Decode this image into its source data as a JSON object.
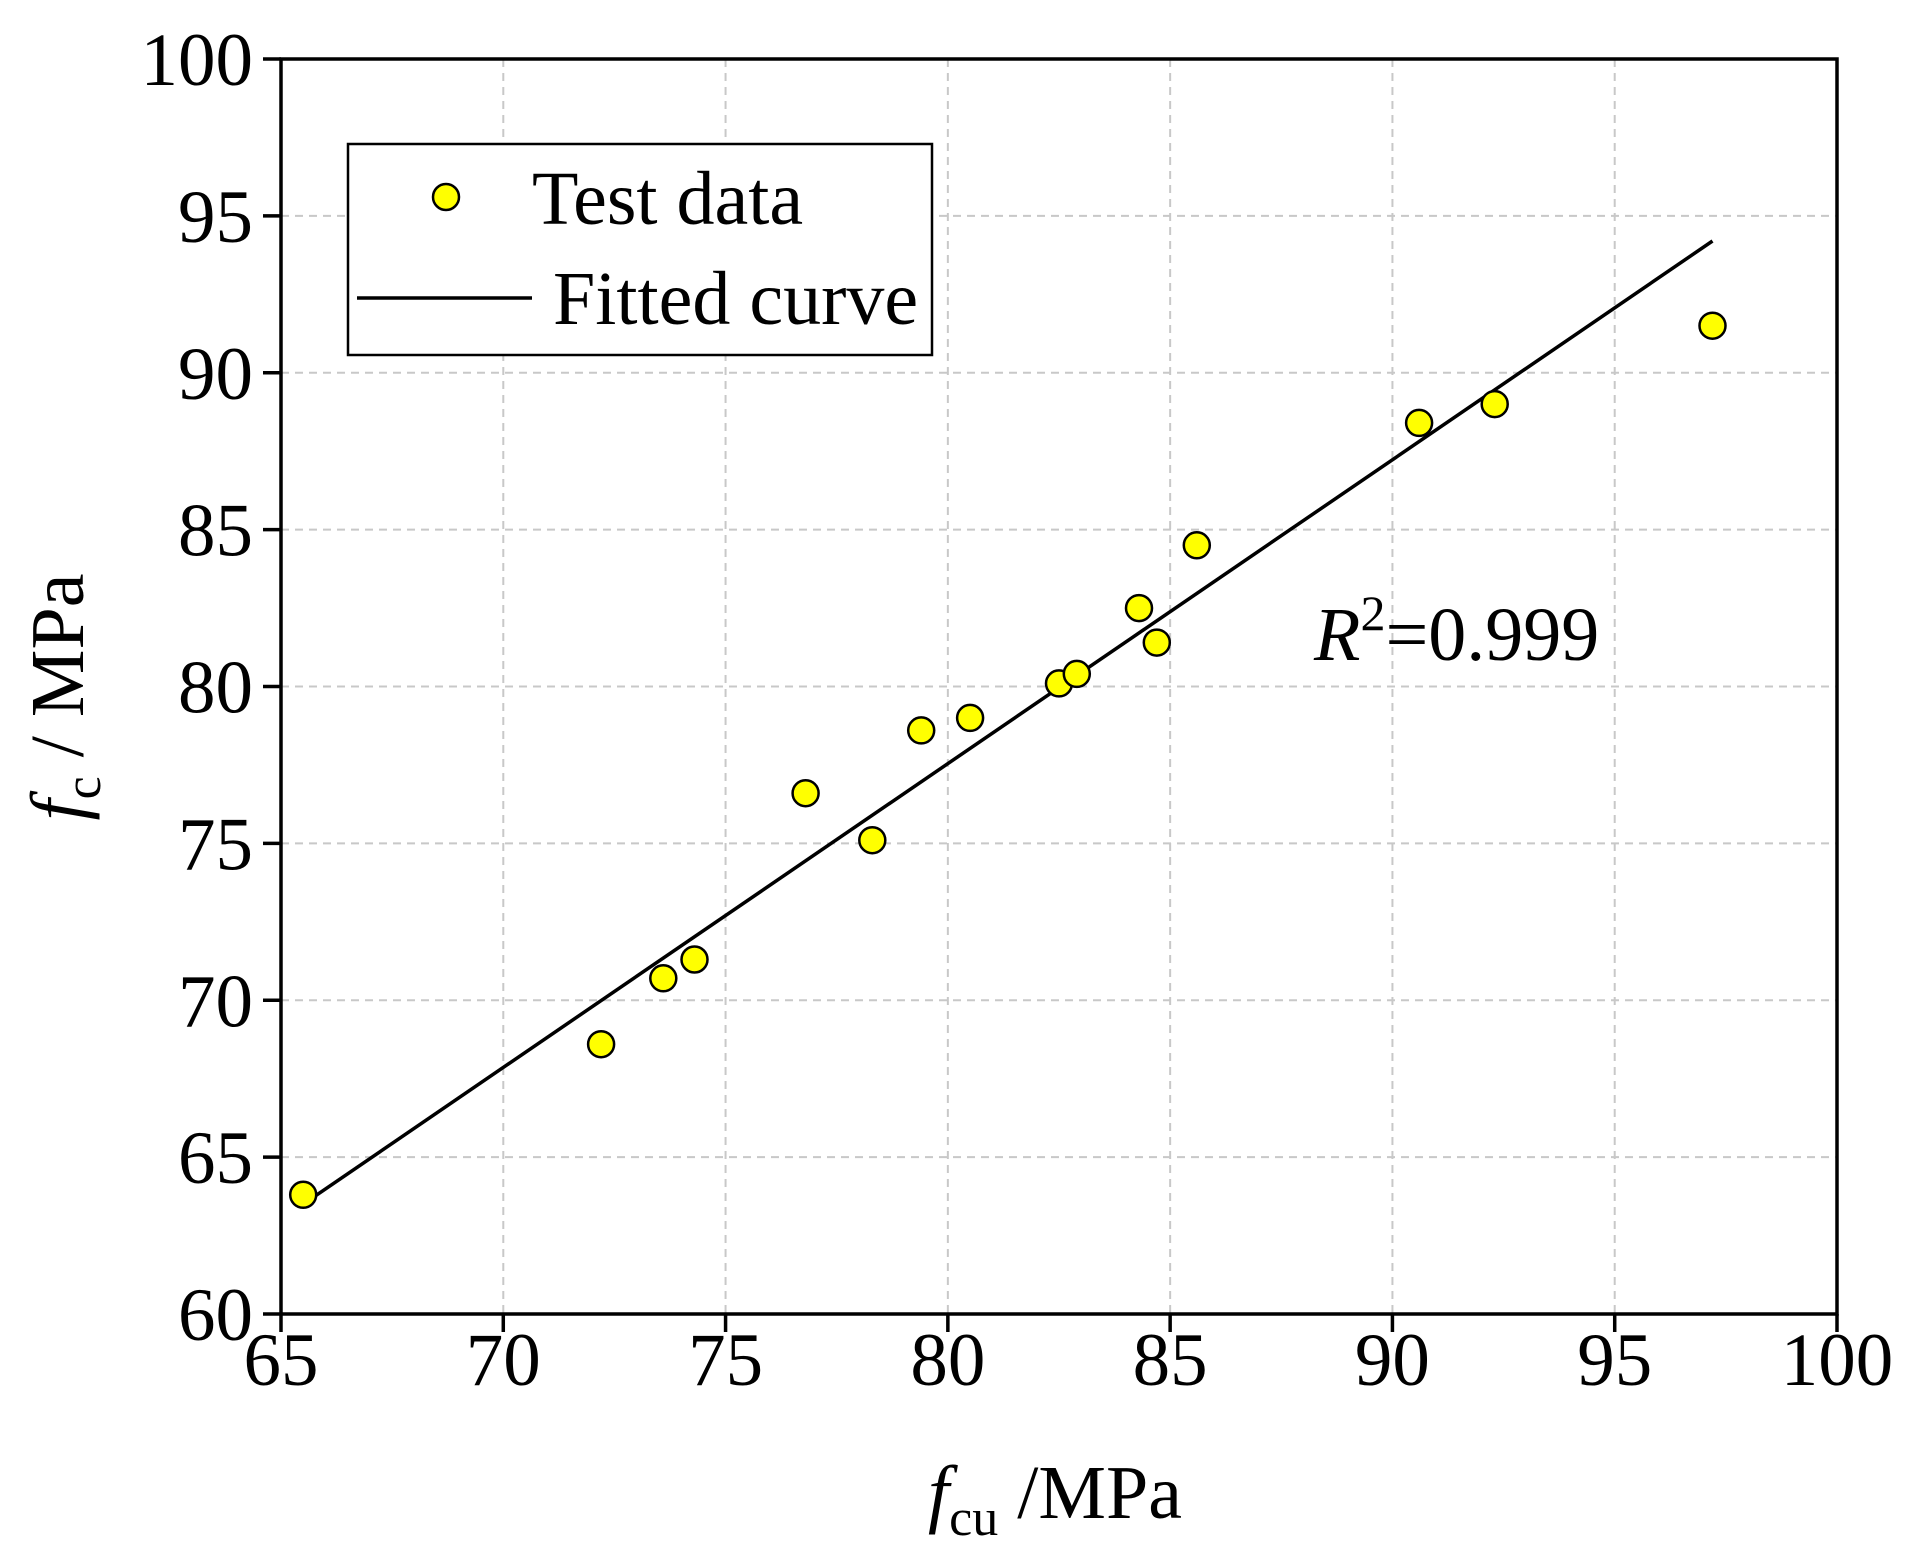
{
  "chart_data": {
    "type": "scatter",
    "xlabel": {
      "symbol": "f",
      "subscript": "cu",
      "unit": " /MPa"
    },
    "ylabel": {
      "symbol": "f",
      "subscript": "c",
      "unit": " / MPa"
    },
    "xlim": [
      65,
      100
    ],
    "ylim": [
      60,
      100
    ],
    "x_ticks": [
      65,
      70,
      75,
      80,
      85,
      90,
      95,
      100
    ],
    "y_ticks": [
      60,
      65,
      70,
      75,
      80,
      85,
      90,
      95,
      100
    ],
    "grid": true,
    "legend_position": "top-left",
    "series": [
      {
        "name": "Test data",
        "type": "scatter",
        "marker_color": "#ffff00",
        "edge_color": "#000000",
        "x": [
          65.5,
          72.2,
          73.6,
          74.3,
          76.8,
          78.3,
          79.4,
          80.5,
          82.5,
          82.9,
          84.3,
          84.7,
          85.6,
          90.6,
          92.3,
          97.2
        ],
        "y": [
          63.8,
          68.6,
          70.7,
          71.3,
          76.6,
          75.1,
          78.6,
          79.0,
          80.1,
          80.4,
          82.5,
          81.4,
          84.5,
          88.4,
          89.0,
          91.5
        ]
      },
      {
        "name": "Fitted curve",
        "type": "line",
        "color": "#000000",
        "x": [
          65.5,
          97.2
        ],
        "y": [
          63.5,
          94.2
        ]
      }
    ],
    "annotation": {
      "symbol": "R",
      "superscript": "2",
      "value": "=0.999"
    }
  }
}
